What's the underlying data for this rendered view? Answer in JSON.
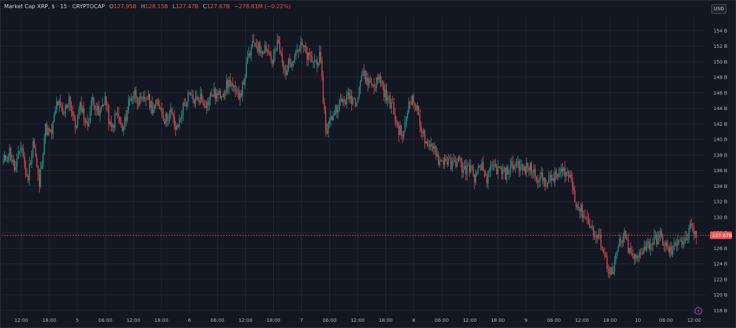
{
  "header": {
    "symbol": "Market Cap XRP, $ · 15 · CRYPTOCAP",
    "open_label": "O",
    "open": "127.95B",
    "high_label": "H",
    "high": "128.15B",
    "low_label": "L",
    "low": "127.47B",
    "close_label": "C",
    "close": "127.67B",
    "change": "−278.61M (−0.22%)"
  },
  "currency": "USD",
  "last_price_label": "127.67B",
  "colors": {
    "up": "#26a69a",
    "down": "#ef5350",
    "background": "#131722"
  },
  "indicator_icon": "lightning-icon",
  "chart_data": {
    "type": "candlestick",
    "title": "",
    "xlabel": "",
    "ylabel": "",
    "unit": "B",
    "ylim": [
      117.5,
      156.0
    ],
    "y_ticks": [
      118,
      120,
      122,
      124,
      126,
      128,
      130,
      132,
      134,
      136,
      138,
      140,
      142,
      144,
      146,
      148,
      150,
      152,
      154
    ],
    "y_tick_labels": [
      "118 B",
      "120 B",
      "122 B",
      "124 B",
      "126 B",
      "128 B",
      "130 B",
      "132 B",
      "134 B",
      "136 B",
      "138 B",
      "140 B",
      "142 B",
      "144 B",
      "146 B",
      "148 B",
      "150 B",
      "152 B",
      "154 B"
    ],
    "x_tick_labels": [
      "12:00",
      "18:00",
      "5",
      "06:00",
      "12:00",
      "18:00",
      "6",
      "06:00",
      "12:00",
      "18:00",
      "7",
      "06:00",
      "12:00",
      "18:00",
      "8",
      "06:00",
      "12:00",
      "18:00",
      "9",
      "06:00",
      "12:00",
      "18:00",
      "10",
      "06:00",
      "12:00"
    ],
    "bar_interval_minutes": 15,
    "last_price": 127.67,
    "grid": true,
    "close_path": [
      137.0,
      138.5,
      136.0,
      139.5,
      134.5,
      140.0,
      134.0,
      141.5,
      140.5,
      145.0,
      143.0,
      145.5,
      141.5,
      144.5,
      141.5,
      145.5,
      143.0,
      145.5,
      141.0,
      143.5,
      140.8,
      145.0,
      146.0,
      144.5,
      145.5,
      144.0,
      144.8,
      142.5,
      143.5,
      141.0,
      144.0,
      145.5,
      145.0,
      145.5,
      144.5,
      146.0,
      145.5,
      146.5,
      147.5,
      145.5,
      146.5,
      150.5,
      152.5,
      151.5,
      152.0,
      150.0,
      152.5,
      148.5,
      150.0,
      151.5,
      152.0,
      150.5,
      150.0,
      150.5,
      141.0,
      143.0,
      144.5,
      145.0,
      145.5,
      145.0,
      148.5,
      147.5,
      147.0,
      148.0,
      145.5,
      144.5,
      141.5,
      140.5,
      145.5,
      144.5,
      141.5,
      138.5,
      139.5,
      137.0,
      137.5,
      136.5,
      137.5,
      136.0,
      136.5,
      135.0,
      136.5,
      135.0,
      136.5,
      136.0,
      135.5,
      136.5,
      137.0,
      136.0,
      136.5,
      135.5,
      135.0,
      134.5,
      135.0,
      135.5,
      136.0,
      135.0,
      131.5,
      130.5,
      129.5,
      127.5,
      127.0,
      124.0,
      122.5,
      126.5,
      127.5,
      125.0,
      124.5,
      126.0,
      126.5,
      127.0,
      127.5,
      126.0,
      125.5,
      127.5,
      126.5,
      128.5,
      127.67
    ]
  }
}
